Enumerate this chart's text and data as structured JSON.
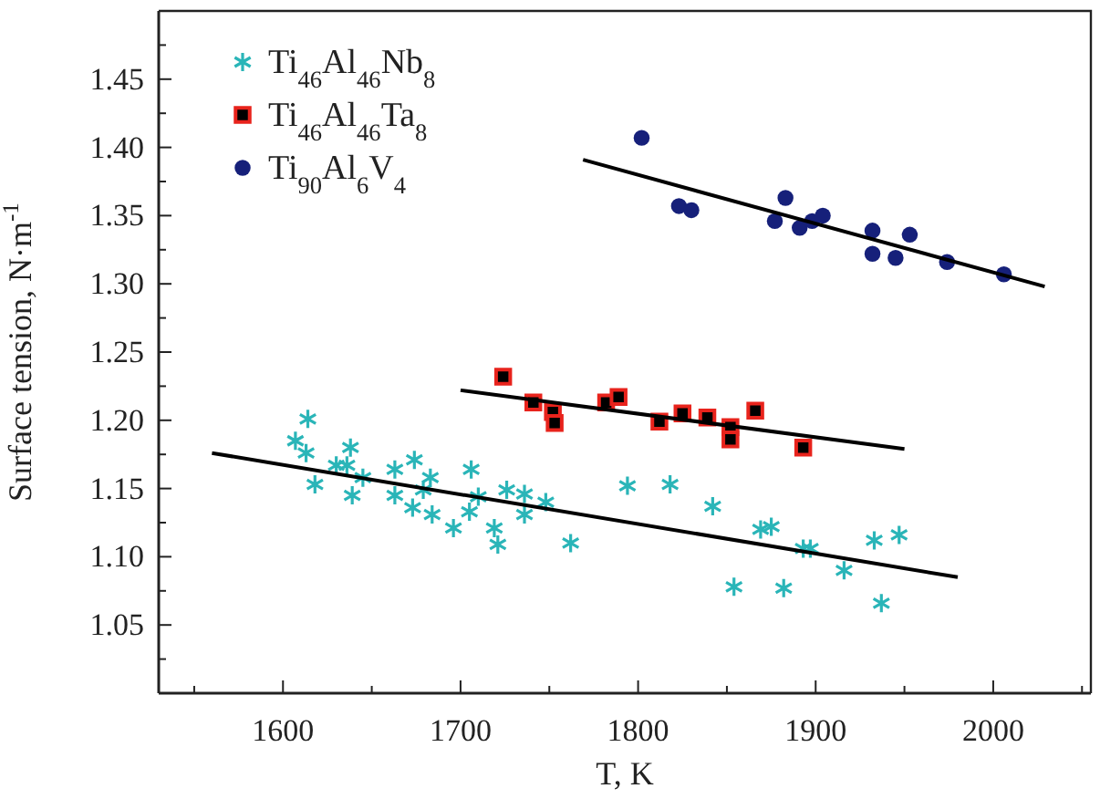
{
  "chart_data": {
    "type": "scatter",
    "xlabel": "T, K",
    "ylabel": "Surface tension, N·m$^{-1}$",
    "xlim": [
      1530,
      2055
    ],
    "ylim": [
      1.0,
      1.5
    ],
    "xticks": [
      {
        "value": 1550,
        "label": null
      },
      1600,
      {
        "value": 1650,
        "label": null
      },
      1700,
      {
        "value": 1750,
        "label": null
      },
      1800,
      {
        "value": 1850,
        "label": null
      },
      1900,
      {
        "value": 1950,
        "label": null
      },
      2000,
      {
        "value": 2050,
        "label": null
      }
    ],
    "yticks": [
      {
        "value": 1.025,
        "label": null
      },
      {
        "value": 1.05,
        "label": "1.05"
      },
      {
        "value": 1.075,
        "label": null
      },
      {
        "value": 1.1,
        "label": "1.10"
      },
      {
        "value": 1.125,
        "label": null
      },
      {
        "value": 1.15,
        "label": "1.15"
      },
      {
        "value": 1.175,
        "label": null
      },
      {
        "value": 1.2,
        "label": "1.20"
      },
      {
        "value": 1.225,
        "label": null
      },
      {
        "value": 1.25,
        "label": "1.25"
      },
      {
        "value": 1.275,
        "label": null
      },
      {
        "value": 1.3,
        "label": "1.30"
      },
      {
        "value": 1.325,
        "label": null
      },
      {
        "value": 1.35,
        "label": "1.35"
      },
      {
        "value": 1.375,
        "label": null
      },
      {
        "value": 1.4,
        "label": "1.40"
      },
      {
        "value": 1.425,
        "label": null
      },
      {
        "value": 1.45,
        "label": "1.45"
      },
      {
        "value": 1.475,
        "label": null
      }
    ],
    "legend": "top left",
    "grid": false,
    "series": [
      {
        "name": "Ti$_{46}$Al$_{46}$Nb$_{8}$",
        "color": "#2ab5b8",
        "marker": "cross",
        "x": [
          1614,
          1607,
          1613,
          1638,
          1618,
          1630,
          1636,
          1639,
          1645,
          1663,
          1663,
          1674,
          1673,
          1679,
          1683,
          1684,
          1696,
          1706,
          1705,
          1710,
          1719,
          1721,
          1726,
          1736,
          1736,
          1748,
          1762,
          1794,
          1818,
          1842,
          1854,
          1869,
          1875,
          1882,
          1893,
          1897,
          1916,
          1933,
          1937,
          1947
        ],
        "values": [
          1.201,
          1.185,
          1.176,
          1.18,
          1.153,
          1.167,
          1.167,
          1.145,
          1.158,
          1.164,
          1.145,
          1.171,
          1.136,
          1.149,
          1.158,
          1.131,
          1.121,
          1.164,
          1.133,
          1.144,
          1.121,
          1.109,
          1.149,
          1.146,
          1.131,
          1.14,
          1.11,
          1.152,
          1.153,
          1.137,
          1.078,
          1.12,
          1.122,
          1.077,
          1.106,
          1.106,
          1.09,
          1.112,
          1.066,
          1.116
        ]
      },
      {
        "name": "Ti$_{46}$Al$_{46}$Ta$_{8}$",
        "color": "#e8231c",
        "marker": "square",
        "x": [
          1724,
          1741,
          1752,
          1753,
          1782,
          1789,
          1812,
          1825,
          1839,
          1852,
          1852,
          1866,
          1893
        ],
        "values": [
          1.232,
          1.213,
          1.206,
          1.198,
          1.213,
          1.217,
          1.199,
          1.205,
          1.202,
          1.195,
          1.186,
          1.207,
          1.18
        ]
      },
      {
        "name": "Ti$_{90}$Al$_{6}$V$_{4}$",
        "color": "#16207a",
        "marker": "circle",
        "x": [
          1802,
          1823,
          1830,
          1877,
          1883,
          1891,
          1898,
          1904,
          1932,
          1932,
          1945,
          1953,
          1974,
          2006
        ],
        "values": [
          1.407,
          1.357,
          1.354,
          1.346,
          1.363,
          1.341,
          1.346,
          1.35,
          1.339,
          1.322,
          1.319,
          1.336,
          1.316,
          1.307
        ]
      },
      {
        "type": "line",
        "color": "#000000",
        "marker": "none",
        "x": [
          1560,
          1980
        ],
        "values": [
          1.176,
          1.085
        ]
      },
      {
        "type": "line",
        "color": "#000000",
        "marker": "none",
        "x": [
          1700,
          1950
        ],
        "values": [
          1.222,
          1.179
        ]
      },
      {
        "type": "line",
        "color": "#000000",
        "marker": "none",
        "x": [
          1769,
          2029
        ],
        "values": [
          1.391,
          1.298
        ]
      }
    ]
  }
}
